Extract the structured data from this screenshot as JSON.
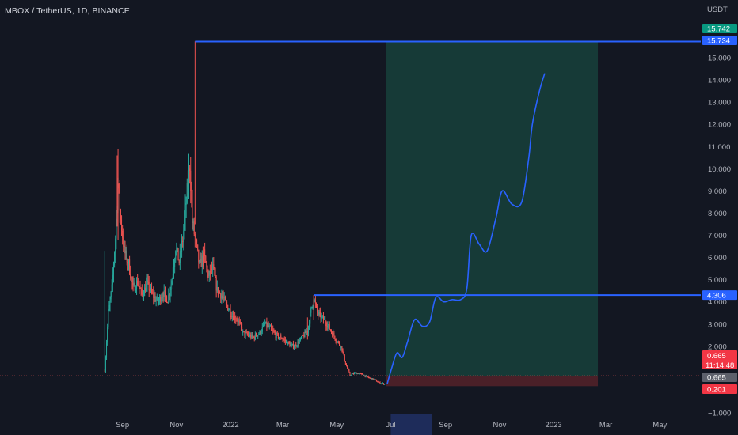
{
  "header": {
    "title": "MBOX / TetherUS, 1D, BINANCE"
  },
  "axis": {
    "currency": "USDT"
  },
  "colors": {
    "background": "#131722",
    "candle_up": "#26a69a",
    "candle_down": "#ef5350",
    "line_blue": "#2962ff",
    "profit_zone": "#163a37",
    "loss_zone": "#4a2028",
    "tag_green": "#089981",
    "tag_blue": "#2962ff",
    "tag_red": "#f23645",
    "tag_gray": "#5d606b"
  },
  "chart_data": {
    "type": "candlestick",
    "title": "MBOX / TetherUS, 1D, BINANCE",
    "ylabel": "USDT",
    "ylim": [
      -1,
      16
    ],
    "y_ticks": [
      -1,
      0,
      1,
      2,
      3,
      4,
      5,
      6,
      7,
      8,
      9,
      10,
      11,
      12,
      13,
      14,
      15
    ],
    "y_tick_labels": [
      "−1.000",
      "",
      "",
      "2.000",
      "3.000",
      "4.000",
      "5.000",
      "6.000",
      "7.000",
      "8.000",
      "9.000",
      "10.000",
      "11.000",
      "12.000",
      "13.000",
      "14.000",
      "15.000"
    ],
    "xlim": [
      "2021-08-01",
      "2023-06-10"
    ],
    "x_ticks": [
      {
        "date": "2021-09-01",
        "label": "Sep"
      },
      {
        "date": "2021-11-01",
        "label": "Nov"
      },
      {
        "date": "2022-01-01",
        "label": "2022"
      },
      {
        "date": "2022-03-01",
        "label": "Mar"
      },
      {
        "date": "2022-05-01",
        "label": "May"
      },
      {
        "date": "2022-07-01",
        "label": "Jul"
      },
      {
        "date": "2022-09-01",
        "label": "Sep"
      },
      {
        "date": "2022-11-01",
        "label": "Nov"
      },
      {
        "date": "2023-01-01",
        "label": "2023"
      },
      {
        "date": "2023-03-01",
        "label": "Mar"
      },
      {
        "date": "2023-05-01",
        "label": "May"
      }
    ],
    "price_path": [
      [
        "2021-08-12",
        0.9
      ],
      [
        "2021-08-16",
        3.5
      ],
      [
        "2021-08-20",
        4.6
      ],
      [
        "2021-08-24",
        6.9
      ],
      [
        "2021-08-27",
        9.3
      ],
      [
        "2021-08-30",
        7.7
      ],
      [
        "2021-09-03",
        6.3
      ],
      [
        "2021-09-08",
        5.7
      ],
      [
        "2021-09-13",
        4.6
      ],
      [
        "2021-09-18",
        4.9
      ],
      [
        "2021-09-23",
        4.3
      ],
      [
        "2021-09-29",
        4.8
      ],
      [
        "2021-10-05",
        4.3
      ],
      [
        "2021-10-11",
        4.0
      ],
      [
        "2021-10-17",
        4.4
      ],
      [
        "2021-10-22",
        4.1
      ],
      [
        "2021-10-27",
        5.0
      ],
      [
        "2021-10-31",
        6.5
      ],
      [
        "2021-11-04",
        5.8
      ],
      [
        "2021-11-08",
        6.8
      ],
      [
        "2021-11-12",
        8.5
      ],
      [
        "2021-11-16",
        10.2
      ],
      [
        "2021-11-19",
        7.6
      ],
      [
        "2021-11-23",
        6.6
      ],
      [
        "2021-11-27",
        5.6
      ],
      [
        "2021-12-02",
        6.1
      ],
      [
        "2021-12-07",
        5.1
      ],
      [
        "2021-12-12",
        5.5
      ],
      [
        "2021-12-17",
        4.5
      ],
      [
        "2021-12-22",
        4.3
      ],
      [
        "2021-12-27",
        3.9
      ],
      [
        "2022-01-03",
        3.4
      ],
      [
        "2022-01-09",
        3.2
      ],
      [
        "2022-01-15",
        2.6
      ],
      [
        "2022-01-21",
        2.5
      ],
      [
        "2022-01-27",
        2.4
      ],
      [
        "2022-02-03",
        2.6
      ],
      [
        "2022-02-09",
        3.0
      ],
      [
        "2022-02-15",
        2.8
      ],
      [
        "2022-02-21",
        2.5
      ],
      [
        "2022-02-27",
        2.4
      ],
      [
        "2022-03-05",
        2.2
      ],
      [
        "2022-03-11",
        2.0
      ],
      [
        "2022-03-17",
        2.1
      ],
      [
        "2022-03-23",
        2.4
      ],
      [
        "2022-03-29",
        2.7
      ],
      [
        "2022-04-02",
        3.6
      ],
      [
        "2022-04-05",
        4.2
      ],
      [
        "2022-04-09",
        3.5
      ],
      [
        "2022-04-14",
        3.3
      ],
      [
        "2022-04-20",
        3.0
      ],
      [
        "2022-04-26",
        2.6
      ],
      [
        "2022-05-02",
        2.2
      ],
      [
        "2022-05-07",
        1.9
      ],
      [
        "2022-05-11",
        1.2
      ],
      [
        "2022-05-16",
        0.7
      ],
      [
        "2022-05-22",
        0.8
      ],
      [
        "2022-05-29",
        0.75
      ],
      [
        "2022-06-05",
        0.6
      ],
      [
        "2022-06-12",
        0.5
      ],
      [
        "2022-06-18",
        0.35
      ],
      [
        "2022-06-24",
        0.3
      ]
    ],
    "annotations": {
      "all_time_high": 15.742,
      "current_price": 0.665,
      "stop_loss": 0.201,
      "resistance_level": 4.306,
      "target_level": 15.734,
      "countdown": "11:14:48",
      "ath_line": {
        "from": "2021-11-22",
        "to": "2023-06-10",
        "value": 15.734
      },
      "resistance_line": {
        "from": "2022-04-05",
        "to": "2023-06-10",
        "value": 4.306
      },
      "current_price_line": 0.665,
      "long_position": {
        "start": "2022-06-26",
        "end": "2023-02-20",
        "entry": 0.665,
        "target": 15.734,
        "stop": 0.201
      },
      "highlighted_x_range": [
        "2022-07-01",
        "2022-08-17"
      ],
      "projection_path": [
        [
          "2022-06-27",
          0.3
        ],
        [
          "2022-07-02",
          1.0
        ],
        [
          "2022-07-08",
          1.7
        ],
        [
          "2022-07-14",
          1.5
        ],
        [
          "2022-07-20",
          2.2
        ],
        [
          "2022-07-28",
          3.2
        ],
        [
          "2022-08-06",
          2.9
        ],
        [
          "2022-08-14",
          3.1
        ],
        [
          "2022-08-21",
          4.2
        ],
        [
          "2022-08-30",
          4.0
        ],
        [
          "2022-09-08",
          4.1
        ],
        [
          "2022-09-18",
          4.1
        ],
        [
          "2022-09-25",
          4.6
        ],
        [
          "2022-09-30",
          7.0
        ],
        [
          "2022-10-09",
          6.6
        ],
        [
          "2022-10-18",
          6.3
        ],
        [
          "2022-10-28",
          7.8
        ],
        [
          "2022-11-04",
          9.0
        ],
        [
          "2022-11-15",
          8.4
        ],
        [
          "2022-11-26",
          8.5
        ],
        [
          "2022-12-04",
          10.5
        ],
        [
          "2022-12-08",
          12.0
        ],
        [
          "2022-12-16",
          13.5
        ],
        [
          "2022-12-22",
          14.3
        ]
      ]
    }
  }
}
